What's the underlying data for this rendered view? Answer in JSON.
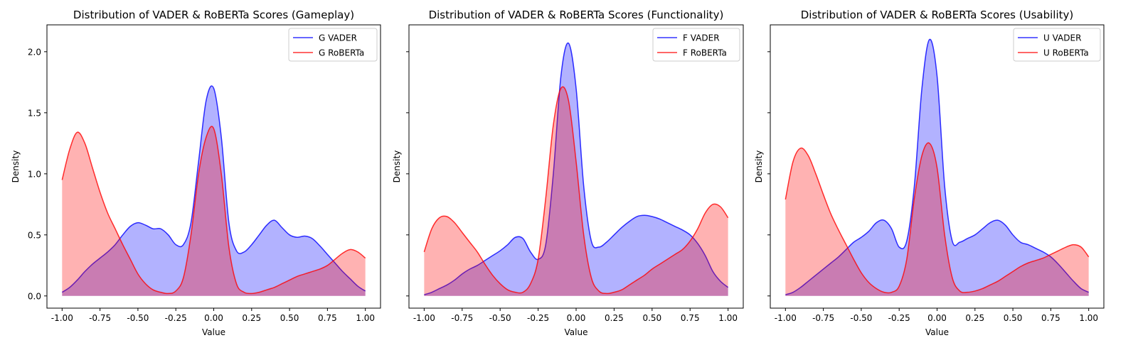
{
  "chart_data": [
    {
      "type": "area",
      "title": "Distribution of VADER & RoBERTa Scores (Gameplay)",
      "xlabel": "Value",
      "ylabel": "Density",
      "xlim": [
        -1.1,
        1.1
      ],
      "ylim": [
        -0.1,
        2.22
      ],
      "x_ticks": [
        "-1.00",
        "-0.75",
        "-0.50",
        "-0.25",
        "0.00",
        "0.25",
        "0.50",
        "0.75",
        "1.00"
      ],
      "y_ticks": [
        "0.0",
        "0.5",
        "1.0",
        "1.5",
        "2.0"
      ],
      "legend_position": "top-right",
      "x": [
        -1.0,
        -0.95,
        -0.9,
        -0.85,
        -0.8,
        -0.75,
        -0.7,
        -0.65,
        -0.6,
        -0.55,
        -0.5,
        -0.45,
        -0.4,
        -0.35,
        -0.3,
        -0.25,
        -0.2,
        -0.15,
        -0.1,
        -0.05,
        0.0,
        0.05,
        0.1,
        0.15,
        0.2,
        0.25,
        0.3,
        0.35,
        0.4,
        0.45,
        0.5,
        0.55,
        0.6,
        0.65,
        0.7,
        0.75,
        0.8,
        0.85,
        0.9,
        0.95,
        1.0
      ],
      "series": [
        {
          "name": "G VADER",
          "color": "#0000ff",
          "values": [
            0.03,
            0.07,
            0.13,
            0.2,
            0.26,
            0.31,
            0.36,
            0.42,
            0.5,
            0.57,
            0.6,
            0.58,
            0.55,
            0.55,
            0.5,
            0.42,
            0.42,
            0.6,
            1.1,
            1.6,
            1.7,
            1.3,
            0.6,
            0.37,
            0.36,
            0.42,
            0.5,
            0.58,
            0.62,
            0.56,
            0.5,
            0.48,
            0.49,
            0.47,
            0.41,
            0.34,
            0.27,
            0.2,
            0.14,
            0.08,
            0.04
          ]
        },
        {
          "name": "G RoBERTa",
          "color": "#ff0000",
          "values": [
            0.95,
            1.2,
            1.34,
            1.25,
            1.05,
            0.85,
            0.68,
            0.55,
            0.42,
            0.3,
            0.18,
            0.1,
            0.05,
            0.03,
            0.02,
            0.04,
            0.15,
            0.5,
            1.0,
            1.3,
            1.37,
            1.0,
            0.4,
            0.1,
            0.03,
            0.02,
            0.03,
            0.05,
            0.07,
            0.1,
            0.13,
            0.16,
            0.18,
            0.2,
            0.22,
            0.25,
            0.3,
            0.35,
            0.38,
            0.36,
            0.31
          ]
        }
      ]
    },
    {
      "type": "area",
      "title": "Distribution of VADER & RoBERTa Scores (Functionality)",
      "xlabel": "Value",
      "ylabel": "Density",
      "xlim": [
        -1.1,
        1.1
      ],
      "ylim": [
        -0.1,
        2.22
      ],
      "x_ticks": [
        "-1.00",
        "-0.75",
        "-0.50",
        "-0.25",
        "0.00",
        "0.25",
        "0.50",
        "0.75",
        "1.00"
      ],
      "y_ticks": [
        "0.0",
        "0.5",
        "1.0",
        "1.5",
        "2.0"
      ],
      "legend_position": "top-right",
      "x": [
        -1.0,
        -0.95,
        -0.9,
        -0.85,
        -0.8,
        -0.75,
        -0.7,
        -0.65,
        -0.6,
        -0.55,
        -0.5,
        -0.45,
        -0.4,
        -0.35,
        -0.3,
        -0.25,
        -0.2,
        -0.15,
        -0.1,
        -0.05,
        0.0,
        0.05,
        0.1,
        0.15,
        0.2,
        0.25,
        0.3,
        0.35,
        0.4,
        0.45,
        0.5,
        0.55,
        0.6,
        0.65,
        0.7,
        0.75,
        0.8,
        0.85,
        0.9,
        0.95,
        1.0
      ],
      "series": [
        {
          "name": "F VADER",
          "color": "#0000ff",
          "values": [
            0.01,
            0.03,
            0.06,
            0.09,
            0.13,
            0.18,
            0.22,
            0.25,
            0.29,
            0.33,
            0.37,
            0.42,
            0.48,
            0.47,
            0.36,
            0.3,
            0.42,
            1.0,
            1.8,
            2.07,
            1.7,
            0.9,
            0.45,
            0.4,
            0.44,
            0.5,
            0.56,
            0.61,
            0.65,
            0.66,
            0.65,
            0.63,
            0.6,
            0.57,
            0.54,
            0.5,
            0.43,
            0.33,
            0.2,
            0.12,
            0.07
          ]
        },
        {
          "name": "F RoBERTa",
          "color": "#ff0000",
          "values": [
            0.36,
            0.55,
            0.64,
            0.65,
            0.6,
            0.52,
            0.44,
            0.36,
            0.26,
            0.17,
            0.1,
            0.05,
            0.03,
            0.03,
            0.1,
            0.3,
            0.8,
            1.4,
            1.7,
            1.6,
            1.1,
            0.5,
            0.15,
            0.04,
            0.02,
            0.03,
            0.05,
            0.09,
            0.13,
            0.17,
            0.22,
            0.26,
            0.3,
            0.34,
            0.38,
            0.45,
            0.55,
            0.68,
            0.75,
            0.73,
            0.64
          ]
        }
      ]
    },
    {
      "type": "area",
      "title": "Distribution of VADER & RoBERTa Scores (Usability)",
      "xlabel": "Value",
      "ylabel": "Density",
      "xlim": [
        -1.1,
        1.1
      ],
      "ylim": [
        -0.1,
        2.22
      ],
      "x_ticks": [
        "-1.00",
        "-0.75",
        "-0.50",
        "-0.25",
        "0.00",
        "0.25",
        "0.50",
        "0.75",
        "1.00"
      ],
      "y_ticks": [
        "0.0",
        "0.5",
        "1.0",
        "1.5",
        "2.0"
      ],
      "legend_position": "top-right",
      "x": [
        -1.0,
        -0.95,
        -0.9,
        -0.85,
        -0.8,
        -0.75,
        -0.7,
        -0.65,
        -0.6,
        -0.55,
        -0.5,
        -0.45,
        -0.4,
        -0.35,
        -0.3,
        -0.25,
        -0.2,
        -0.15,
        -0.1,
        -0.05,
        0.0,
        0.05,
        0.1,
        0.15,
        0.2,
        0.25,
        0.3,
        0.35,
        0.4,
        0.45,
        0.5,
        0.55,
        0.6,
        0.65,
        0.7,
        0.75,
        0.8,
        0.85,
        0.9,
        0.95,
        1.0
      ],
      "series": [
        {
          "name": "U VADER",
          "color": "#0000ff",
          "values": [
            0.01,
            0.03,
            0.07,
            0.12,
            0.17,
            0.22,
            0.27,
            0.32,
            0.38,
            0.44,
            0.48,
            0.53,
            0.6,
            0.62,
            0.55,
            0.4,
            0.45,
            0.9,
            1.7,
            2.1,
            1.8,
            0.9,
            0.45,
            0.44,
            0.47,
            0.5,
            0.55,
            0.6,
            0.62,
            0.58,
            0.5,
            0.44,
            0.42,
            0.39,
            0.36,
            0.32,
            0.26,
            0.19,
            0.12,
            0.06,
            0.03
          ]
        },
        {
          "name": "U RoBERTa",
          "color": "#ff0000",
          "values": [
            0.79,
            1.1,
            1.21,
            1.15,
            1.0,
            0.83,
            0.67,
            0.54,
            0.42,
            0.3,
            0.19,
            0.11,
            0.06,
            0.03,
            0.03,
            0.08,
            0.3,
            0.8,
            1.15,
            1.25,
            1.05,
            0.5,
            0.15,
            0.04,
            0.03,
            0.04,
            0.06,
            0.09,
            0.12,
            0.16,
            0.2,
            0.24,
            0.27,
            0.29,
            0.31,
            0.34,
            0.37,
            0.4,
            0.42,
            0.4,
            0.32
          ]
        }
      ]
    }
  ]
}
